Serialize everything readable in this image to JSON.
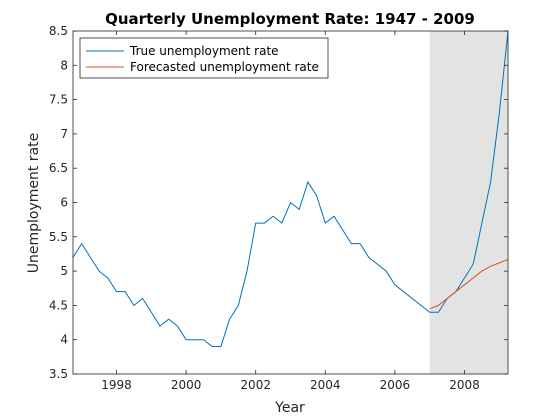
{
  "chart_data": {
    "type": "line",
    "title": "Quarterly Unemployment Rate: 1947 - 2009",
    "xlabel": "Year",
    "ylabel": "Unemployment rate",
    "xlim": [
      1996.75,
      2009.25
    ],
    "ylim": [
      3.5,
      8.5
    ],
    "xticks": [
      1998,
      2000,
      2002,
      2004,
      2006,
      2008
    ],
    "xtick_labels": [
      "1998",
      "2000",
      "2002",
      "2004",
      "2006",
      "2008"
    ],
    "yticks": [
      3.5,
      4,
      4.5,
      5,
      5.5,
      6,
      6.5,
      7,
      7.5,
      8,
      8.5
    ],
    "ytick_labels": [
      "3.5",
      "4",
      "4.5",
      "5",
      "5.5",
      "6",
      "6.5",
      "7",
      "7.5",
      "8",
      "8.5"
    ],
    "grid": false,
    "legend_position": "top-left",
    "shaded_region": {
      "x_start": 2007.0,
      "x_end": 2009.25,
      "color": "#e3e3e3"
    },
    "series": [
      {
        "name": "True unemployment rate",
        "color": "#0072bd",
        "x": [
          1996.75,
          1997.0,
          1997.25,
          1997.5,
          1997.75,
          1998.0,
          1998.25,
          1998.5,
          1998.75,
          1999.0,
          1999.25,
          1999.5,
          1999.75,
          2000.0,
          2000.25,
          2000.5,
          2000.75,
          2001.0,
          2001.25,
          2001.5,
          2001.75,
          2002.0,
          2002.25,
          2002.5,
          2002.75,
          2003.0,
          2003.25,
          2003.5,
          2003.75,
          2004.0,
          2004.25,
          2004.5,
          2004.75,
          2005.0,
          2005.25,
          2005.5,
          2005.75,
          2006.0,
          2006.25,
          2006.5,
          2006.75,
          2007.0,
          2007.25,
          2007.5,
          2007.75,
          2008.0,
          2008.25,
          2008.5,
          2008.75,
          2009.0,
          2009.25
        ],
        "values": [
          5.2,
          5.4,
          5.2,
          5.0,
          4.9,
          4.7,
          4.7,
          4.5,
          4.6,
          4.4,
          4.2,
          4.3,
          4.2,
          4.0,
          4.0,
          4.0,
          3.9,
          3.9,
          4.3,
          4.5,
          5.0,
          5.7,
          5.7,
          5.8,
          5.7,
          6.0,
          5.9,
          6.3,
          6.1,
          5.7,
          5.8,
          5.6,
          5.4,
          5.4,
          5.2,
          5.1,
          5.0,
          4.8,
          4.7,
          4.6,
          4.5,
          4.4,
          4.4,
          4.6,
          4.7,
          4.9,
          5.1,
          5.7,
          6.3,
          7.3,
          8.5
        ]
      },
      {
        "name": "Forecasted unemployment rate",
        "color": "#d95319",
        "x": [
          2007.0,
          2007.25,
          2007.5,
          2007.75,
          2008.0,
          2008.25,
          2008.5,
          2008.75,
          2009.0,
          2009.25
        ],
        "values": [
          4.45,
          4.5,
          4.6,
          4.7,
          4.8,
          4.9,
          5.0,
          5.07,
          5.12,
          5.17
        ]
      }
    ]
  }
}
